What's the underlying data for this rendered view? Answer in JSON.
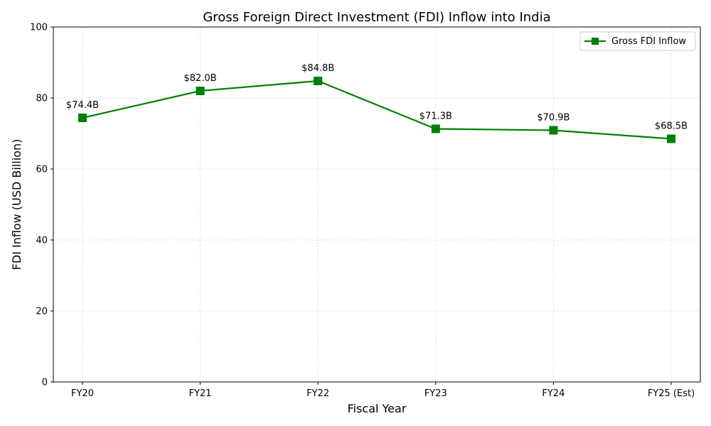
{
  "chart_data": {
    "type": "line",
    "title": "Gross Foreign Direct Investment (FDI) Inflow into India",
    "xlabel": "Fiscal Year",
    "ylabel": "FDI Inflow (USD Billion)",
    "categories": [
      "FY20",
      "FY21",
      "FY22",
      "FY23",
      "FY24",
      "FY25 (Est)"
    ],
    "series": [
      {
        "name": "Gross FDI Inflow",
        "values": [
          74.4,
          82.0,
          84.8,
          71.3,
          70.9,
          68.5
        ],
        "labels": [
          "$74.4B",
          "$82.0B",
          "$84.8B",
          "$71.3B",
          "$70.9B",
          "$68.5B"
        ],
        "color": "#008000",
        "marker": "square"
      }
    ],
    "ylim": [
      0,
      100
    ],
    "yticks": [
      "0",
      "20",
      "40",
      "60",
      "80",
      "100"
    ],
    "grid": true,
    "legend_position": "top-right"
  }
}
